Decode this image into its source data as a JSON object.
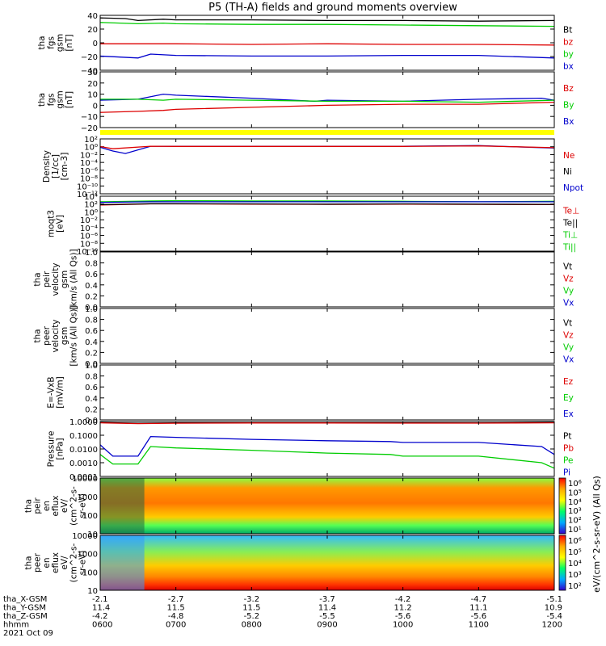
{
  "title": "P5 (TH-A) fields and ground moments overview",
  "colors": {
    "black": "#000000",
    "red": "#dd0000",
    "green": "#00cc00",
    "blue": "#0000cc",
    "yellow": "#ffff00"
  },
  "chart_data": [
    {
      "type": "line",
      "name": "fgs_gsm",
      "ylabel_lines": [
        "tha",
        "fgs",
        "gsm",
        "[nT]"
      ],
      "ylim": [
        -40,
        45
      ],
      "yticks": [
        40,
        20,
        0,
        -20,
        -40
      ],
      "ytick_labels": [
        "40",
        "20",
        "0",
        "−20",
        "−40"
      ],
      "legend": [
        {
          "label": "Bt",
          "color": "#000000"
        },
        {
          "label": "bz",
          "color": "#dd0000"
        },
        {
          "label": "by",
          "color": "#00cc00"
        },
        {
          "label": "bx",
          "color": "#0000cc"
        }
      ],
      "series": [
        {
          "label": "Bt",
          "color": "#000000",
          "x": [
            600,
            620,
            630,
            650,
            700,
            800,
            900,
            1000,
            1100,
            1200
          ],
          "y": [
            41,
            40,
            37,
            39,
            38,
            38,
            37,
            37,
            36,
            37
          ]
        },
        {
          "label": "by",
          "color": "#00cc00",
          "x": [
            600,
            630,
            650,
            700,
            800,
            900,
            1000,
            1100,
            1200
          ],
          "y": [
            34,
            32,
            33,
            32,
            31,
            31,
            30,
            29,
            28
          ]
        },
        {
          "label": "bz",
          "color": "#dd0000",
          "x": [
            600,
            700,
            800,
            900,
            1000,
            1100,
            1200
          ],
          "y": [
            1,
            1,
            0,
            1,
            0,
            0,
            -1
          ]
        },
        {
          "label": "bx",
          "color": "#0000cc",
          "x": [
            600,
            630,
            640,
            700,
            800,
            900,
            1000,
            1100,
            1200
          ],
          "y": [
            -18,
            -21,
            -15,
            -17,
            -18,
            -18,
            -17,
            -17,
            -21
          ]
        }
      ]
    },
    {
      "type": "line",
      "name": "fgs_gsm_detrended",
      "ylabel_lines": [
        "tha",
        "fgs",
        "gsm",
        "[nT]"
      ],
      "ylim": [
        -25,
        30
      ],
      "yticks": [
        30,
        20,
        10,
        0,
        -10,
        -20
      ],
      "ytick_labels": [
        "30",
        "20",
        "10",
        "0",
        "−10",
        "−20"
      ],
      "legend": [
        {
          "label": "Bz",
          "color": "#dd0000"
        },
        {
          "label": "By",
          "color": "#00cc00"
        },
        {
          "label": "Bx",
          "color": "#0000cc"
        }
      ],
      "series": [
        {
          "label": "Bx",
          "color": "#0000cc",
          "x": [
            600,
            630,
            650,
            700,
            800,
            850,
            900,
            1000,
            1100,
            1150,
            1200
          ],
          "y": [
            2,
            3,
            8,
            7,
            4,
            1,
            2,
            1,
            3,
            4,
            2
          ]
        },
        {
          "label": "By",
          "color": "#00cc00",
          "x": [
            600,
            630,
            650,
            700,
            800,
            900,
            1000,
            1100,
            1200
          ],
          "y": [
            3,
            3,
            2,
            3,
            2,
            1,
            1,
            0,
            2
          ]
        },
        {
          "label": "Bz",
          "color": "#dd0000",
          "x": [
            600,
            630,
            650,
            700,
            800,
            900,
            1000,
            1100,
            1200
          ],
          "y": [
            -10,
            -9,
            -8,
            -7,
            -5,
            -3,
            -2,
            -2,
            0
          ]
        }
      ]
    },
    {
      "type": "line",
      "name": "density",
      "ylabel_lines": [
        "Density",
        "[1/cc]",
        "[cm-3]"
      ],
      "scale": "log",
      "ylim": [
        1e-12,
        1000.0
      ],
      "ytick_labels": [
        "10²",
        "10⁰",
        "10⁻²",
        "10⁻⁴",
        "10⁻⁶",
        "10⁻⁸",
        "10⁻¹⁰",
        "10⁻¹²"
      ],
      "legend": [
        {
          "label": "Ne",
          "color": "#dd0000"
        },
        {
          "label": "Ni",
          "color": "#000000"
        },
        {
          "label": "Npot",
          "color": "#0000cc"
        }
      ],
      "series": [
        {
          "label": "Npot",
          "color": "#0000cc",
          "x": [
            600,
            610,
            620,
            640,
            700,
            800,
            900,
            1000,
            1100,
            1200
          ],
          "y": [
            5,
            0.5,
            0.1,
            10,
            10,
            10,
            10,
            10,
            15,
            3
          ]
        },
        {
          "label": "Ne",
          "color": "#dd0000",
          "x": [
            600,
            610,
            640,
            700,
            800,
            900,
            1000,
            1100,
            1200
          ],
          "y": [
            8,
            2,
            10,
            9,
            9,
            9,
            9,
            12,
            4
          ]
        }
      ]
    },
    {
      "type": "line",
      "name": "temperature",
      "ylabel_lines": [
        "moqt3",
        "[eV]"
      ],
      "scale": "log",
      "ylim": [
        1e-10,
        100000.0
      ],
      "ytick_labels": [
        "10⁴",
        "10²",
        "10⁰",
        "10⁻²",
        "10⁻⁴",
        "10⁻⁶",
        "10⁻⁸",
        "10⁻¹⁰"
      ],
      "legend": [
        {
          "label": "Te⊥",
          "color": "#dd0000"
        },
        {
          "label": "Te||",
          "color": "#000000"
        },
        {
          "label": "Ti⊥",
          "color": "#00cc00"
        },
        {
          "label": "Ti||",
          "color": "#00cc00"
        }
      ],
      "series": [
        {
          "label": "Ti",
          "color": "#00cc00",
          "x": [
            600,
            640,
            700,
            800,
            900,
            1000,
            1100,
            1200
          ],
          "y": [
            3000,
            5000,
            6000,
            5000,
            5000,
            4000,
            3000,
            4000
          ]
        },
        {
          "label": "Npot",
          "color": "#0000cc",
          "x": [
            600,
            640,
            700,
            800,
            900,
            1000,
            1100,
            1200
          ],
          "y": [
            2000,
            3000,
            3000,
            3000,
            3000,
            3000,
            3000,
            3000
          ]
        },
        {
          "label": "Te",
          "color": "#dd0000",
          "x": [
            600,
            640,
            700,
            800,
            900,
            1000,
            1100,
            1200
          ],
          "y": [
            400,
            800,
            800,
            700,
            600,
            700,
            600,
            500
          ]
        },
        {
          "label": "Tepar",
          "color": "#000000",
          "x": [
            600,
            640,
            700,
            800,
            900,
            1000,
            1100,
            1200
          ],
          "y": [
            500,
            900,
            900,
            800,
            700,
            800,
            700,
            600
          ]
        }
      ]
    },
    {
      "type": "line",
      "name": "peir_velocity",
      "ylabel_lines": [
        "tha",
        "peir",
        "velocity",
        "gsm",
        "[km/s (All Qs)]"
      ],
      "ylim": [
        0,
        1
      ],
      "ytick_labels": [
        "1.0",
        "0.8",
        "0.6",
        "0.4",
        "0.2",
        "0.0"
      ],
      "legend": [
        {
          "label": "Vt",
          "color": "#000000"
        },
        {
          "label": "Vz",
          "color": "#dd0000"
        },
        {
          "label": "Vy",
          "color": "#00cc00"
        },
        {
          "label": "Vx",
          "color": "#0000cc"
        }
      ],
      "series": []
    },
    {
      "type": "line",
      "name": "peer_velocity",
      "ylabel_lines": [
        "tha",
        "peer",
        "velocity",
        "gsm",
        "[km/s (All Qs)]"
      ],
      "ylim": [
        0,
        1
      ],
      "ytick_labels": [
        "1.0",
        "0.8",
        "0.6",
        "0.4",
        "0.2",
        "0.0"
      ],
      "legend": [
        {
          "label": "Vt",
          "color": "#000000"
        },
        {
          "label": "Vz",
          "color": "#dd0000"
        },
        {
          "label": "Vy",
          "color": "#00cc00"
        },
        {
          "label": "Vx",
          "color": "#0000cc"
        }
      ],
      "series": []
    },
    {
      "type": "line",
      "name": "efield",
      "ylabel_lines": [
        "E=-VxB",
        "[mV/m]"
      ],
      "ylim": [
        0,
        1
      ],
      "ytick_labels": [
        "1.0",
        "0.8",
        "0.6",
        "0.4",
        "0.2",
        "0.0"
      ],
      "legend": [
        {
          "label": "Ez",
          "color": "#dd0000"
        },
        {
          "label": "Ey",
          "color": "#00cc00"
        },
        {
          "label": "Ex",
          "color": "#0000cc"
        }
      ],
      "series": []
    },
    {
      "type": "line",
      "name": "pressure",
      "ylabel_lines": [
        "Pressure",
        "[nPa]"
      ],
      "scale": "log",
      "ylim": [
        0.0001,
        1
      ],
      "ytick_labels": [
        "1.0000",
        "0.1000",
        "0.0100",
        "0.0010",
        "0.0001"
      ],
      "legend": [
        {
          "label": "Pt",
          "color": "#000000"
        },
        {
          "label": "Pb",
          "color": "#dd0000"
        },
        {
          "label": "Pe",
          "color": "#00cc00"
        },
        {
          "label": "Pi",
          "color": "#0000cc"
        }
      ],
      "series": [
        {
          "label": "Pt",
          "color": "#000000",
          "x": [
            600,
            630,
            700,
            800,
            900,
            1000,
            1100,
            1200
          ],
          "y": [
            0.85,
            0.75,
            0.8,
            0.8,
            0.8,
            0.8,
            0.78,
            0.85
          ]
        },
        {
          "label": "Pb",
          "color": "#dd0000",
          "x": [
            600,
            630,
            700,
            800,
            900,
            1000,
            1100,
            1200
          ],
          "y": [
            0.8,
            0.7,
            0.75,
            0.78,
            0.78,
            0.76,
            0.76,
            0.8
          ]
        },
        {
          "label": "Pi",
          "color": "#0000cc",
          "x": [
            600,
            610,
            630,
            640,
            700,
            800,
            900,
            950,
            1000,
            1050,
            1100,
            1150,
            1200
          ],
          "y": [
            0.02,
            0.003,
            0.003,
            0.08,
            0.07,
            0.05,
            0.04,
            0.035,
            0.03,
            0.03,
            0.03,
            0.015,
            0.004
          ]
        },
        {
          "label": "Pe",
          "color": "#00cc00",
          "x": [
            600,
            610,
            630,
            640,
            700,
            800,
            900,
            950,
            1000,
            1050,
            1100,
            1150,
            1200
          ],
          "y": [
            0.004,
            0.0008,
            0.0008,
            0.015,
            0.012,
            0.008,
            0.005,
            0.004,
            0.003,
            0.003,
            0.003,
            0.001,
            0.0004
          ]
        }
      ]
    },
    {
      "type": "heatmap",
      "name": "peir_en_eflux",
      "ylabel_lines": [
        "tha",
        "peir",
        "en",
        "eflux",
        "eV/",
        "(cm^2-s-",
        "sr-eV)"
      ],
      "ytick_labels": [
        "10000",
        "1000",
        "100",
        "10"
      ],
      "colorbar_label": "eV/(cm^2-s-sr-eV) (All Qs)",
      "colorbar_ticks": [
        "10⁶",
        "10⁵",
        "10⁴",
        "10³",
        "10²",
        "10¹"
      ]
    },
    {
      "type": "heatmap",
      "name": "peer_en_eflux",
      "ylabel_lines": [
        "tha",
        "peer",
        "en",
        "eflux",
        "eV/",
        "(cm^2-s-",
        "sr-eV)"
      ],
      "ytick_labels": [
        "10000",
        "1000",
        "100",
        "10"
      ],
      "colorbar_label": "eV/(cm^2-s-sr-eV) (All Qs)",
      "colorbar_ticks": [
        "10⁶",
        "10⁵",
        "10⁴",
        "10³",
        "10²"
      ]
    }
  ],
  "xaxis": {
    "rows": [
      {
        "label": "tha_X-GSM",
        "values": [
          "-2.1",
          "-2.7",
          "-3.2",
          "-3.7",
          "-4.2",
          "-4.7",
          "-5.1"
        ]
      },
      {
        "label": "tha_Y-GSM",
        "values": [
          "11.4",
          "11.5",
          "11.5",
          "11.4",
          "11.2",
          "11.1",
          "10.9"
        ]
      },
      {
        "label": "tha_Z-GSM",
        "values": [
          "-4.2",
          "-4.8",
          "-5.2",
          "-5.5",
          "-5.6",
          "-5.6",
          "-5.4"
        ]
      },
      {
        "label": "hhmm",
        "values": [
          "0600",
          "0700",
          "0800",
          "0900",
          "1000",
          "1100",
          "1200"
        ]
      }
    ],
    "date": "2021 Oct 09"
  }
}
